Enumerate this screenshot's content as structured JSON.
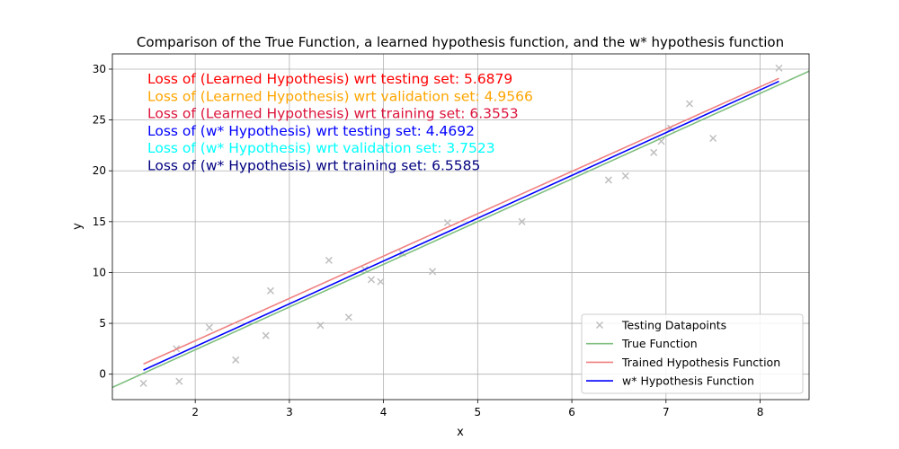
{
  "chart_data": {
    "type": "scatter",
    "title": "Comparison of the True Function, a learned hypothesis function, and the w* hypothesis function",
    "xlabel": "x",
    "ylabel": "y",
    "xlim": [
      1.12,
      8.52
    ],
    "ylim": [
      -2.5,
      31.5
    ],
    "xticks": [
      2,
      3,
      4,
      5,
      6,
      7,
      8
    ],
    "yticks": [
      0,
      5,
      10,
      15,
      20,
      25,
      30
    ],
    "grid": true,
    "legend_position": "bottom-right",
    "annotations": [
      {
        "text": "Loss of (Learned Hypothesis) wrt testing set: 5.6879",
        "color": "#ff0000"
      },
      {
        "text": "Loss of (Learned Hypothesis) wrt validation set: 4.9566",
        "color": "#ffa500"
      },
      {
        "text": "Loss of (Learned Hypothesis) wrt training set: 6.3553",
        "color": "#dc143c"
      },
      {
        "text": "Loss of (w* Hypothesis) wrt testing set: 4.4692",
        "color": "#0000ff"
      },
      {
        "text": "Loss of (w* Hypothesis) wrt validation set: 3.7523",
        "color": "#00ffff"
      },
      {
        "text": "Loss of (w* Hypothesis) wrt training set: 6.5585",
        "color": "#000080"
      }
    ],
    "series": [
      {
        "name": "Testing Datapoints",
        "kind": "scatter",
        "marker": "x",
        "color": "#bfbfbf",
        "points": [
          [
            1.45,
            -0.9
          ],
          [
            1.8,
            2.5
          ],
          [
            1.83,
            -0.7
          ],
          [
            2.15,
            4.6
          ],
          [
            2.43,
            1.4
          ],
          [
            2.75,
            3.8
          ],
          [
            2.8,
            8.2
          ],
          [
            3.33,
            4.8
          ],
          [
            3.42,
            11.2
          ],
          [
            3.63,
            5.6
          ],
          [
            3.8,
            10.3
          ],
          [
            3.87,
            9.3
          ],
          [
            3.97,
            9.1
          ],
          [
            4.2,
            11.9
          ],
          [
            4.52,
            10.1
          ],
          [
            4.68,
            14.9
          ],
          [
            5.47,
            15.0
          ],
          [
            6.39,
            19.1
          ],
          [
            6.57,
            19.5
          ],
          [
            6.87,
            21.8
          ],
          [
            6.95,
            22.9
          ],
          [
            7.05,
            24.2
          ],
          [
            7.25,
            26.6
          ],
          [
            7.5,
            23.2
          ],
          [
            8.2,
            30.1
          ]
        ]
      },
      {
        "name": "True Function",
        "kind": "line",
        "color": "#7fbf7f",
        "points": [
          [
            1.12,
            -1.3
          ],
          [
            8.52,
            29.8
          ]
        ]
      },
      {
        "name": "Trained Hypothesis Function",
        "kind": "line",
        "color": "#f08080",
        "points": [
          [
            1.45,
            1.0
          ],
          [
            8.2,
            29.1
          ]
        ]
      },
      {
        "name": "w* Hypothesis Function",
        "kind": "line",
        "color": "#0000ff",
        "points": [
          [
            1.45,
            0.4
          ],
          [
            8.2,
            28.8
          ]
        ]
      }
    ]
  }
}
